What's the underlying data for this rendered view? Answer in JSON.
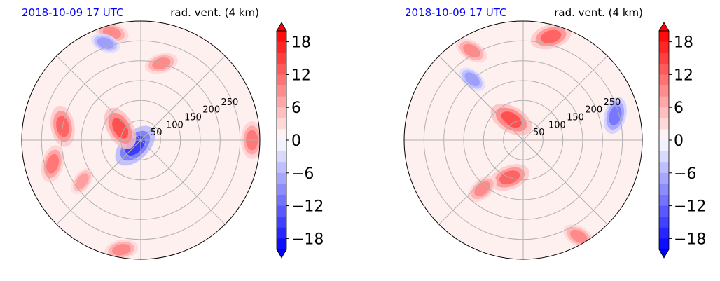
{
  "chart_data": [
    {
      "type": "heatmap",
      "projection": "polar",
      "title_left": "2018-10-09 17 UTC",
      "title_right": "rad. vent. (4 km)",
      "title_left_color": "#0000ff",
      "radial_ticks": [
        "50",
        "100",
        "150",
        "200",
        "250"
      ],
      "radial_tick_values": [
        50,
        100,
        150,
        200,
        250
      ],
      "rmax": 300,
      "colorbar": {
        "ticks": [
          "18",
          "12",
          "6",
          "0",
          "−6",
          "−12",
          "−18"
        ],
        "tick_values": [
          18,
          12,
          6,
          0,
          -6,
          -12,
          -18
        ],
        "range": [
          -20,
          20
        ],
        "extend": "both",
        "colormap": "bwr"
      },
      "features": [
        {
          "kind": "neg",
          "r": 20,
          "theta": 225,
          "strength": 1.0
        },
        {
          "kind": "pos",
          "r": 60,
          "theta": 150,
          "strength": 0.9
        },
        {
          "kind": "pos",
          "r": 200,
          "theta": 170,
          "strength": 0.8
        },
        {
          "kind": "pos",
          "r": 230,
          "theta": 195,
          "strength": 0.7
        },
        {
          "kind": "pos",
          "r": 200,
          "theta": 75,
          "strength": 0.6
        },
        {
          "kind": "pos",
          "r": 280,
          "theta": 105,
          "strength": 0.6
        },
        {
          "kind": "neg",
          "r": 260,
          "theta": 110,
          "strength": 0.5
        },
        {
          "kind": "pos",
          "r": 280,
          "theta": 0,
          "strength": 0.7
        },
        {
          "kind": "pos",
          "r": 180,
          "theta": 215,
          "strength": 0.5
        },
        {
          "kind": "pos",
          "r": 280,
          "theta": 260,
          "strength": 0.6
        }
      ],
      "grid": true
    },
    {
      "type": "heatmap",
      "projection": "polar",
      "title_left": "2018-10-09 17 UTC",
      "title_right": "rad. vent. (4 km)",
      "title_left_color": "#0000ff",
      "radial_ticks": [
        "50",
        "100",
        "150",
        "200",
        "250"
      ],
      "radial_tick_values": [
        50,
        100,
        150,
        200,
        250
      ],
      "rmax": 300,
      "colorbar": {
        "ticks": [
          "18",
          "12",
          "6",
          "0",
          "−6",
          "−12",
          "−18"
        ],
        "tick_values": [
          18,
          12,
          6,
          0,
          -6,
          -12,
          -18
        ],
        "range": [
          -20,
          20
        ],
        "extend": "both",
        "colormap": "bwr"
      },
      "features": [
        {
          "kind": "pos",
          "r": 60,
          "theta": 120,
          "strength": 0.9
        },
        {
          "kind": "pos",
          "r": 100,
          "theta": 250,
          "strength": 0.8
        },
        {
          "kind": "pos",
          "r": 160,
          "theta": 230,
          "strength": 0.6
        },
        {
          "kind": "pos",
          "r": 270,
          "theta": 75,
          "strength": 0.8
        },
        {
          "kind": "pos",
          "r": 260,
          "theta": 120,
          "strength": 0.6
        },
        {
          "kind": "neg",
          "r": 240,
          "theta": 15,
          "strength": 0.7
        },
        {
          "kind": "pos",
          "r": 280,
          "theta": 300,
          "strength": 0.6
        },
        {
          "kind": "neg",
          "r": 200,
          "theta": 130,
          "strength": 0.5
        }
      ],
      "grid": true
    }
  ]
}
